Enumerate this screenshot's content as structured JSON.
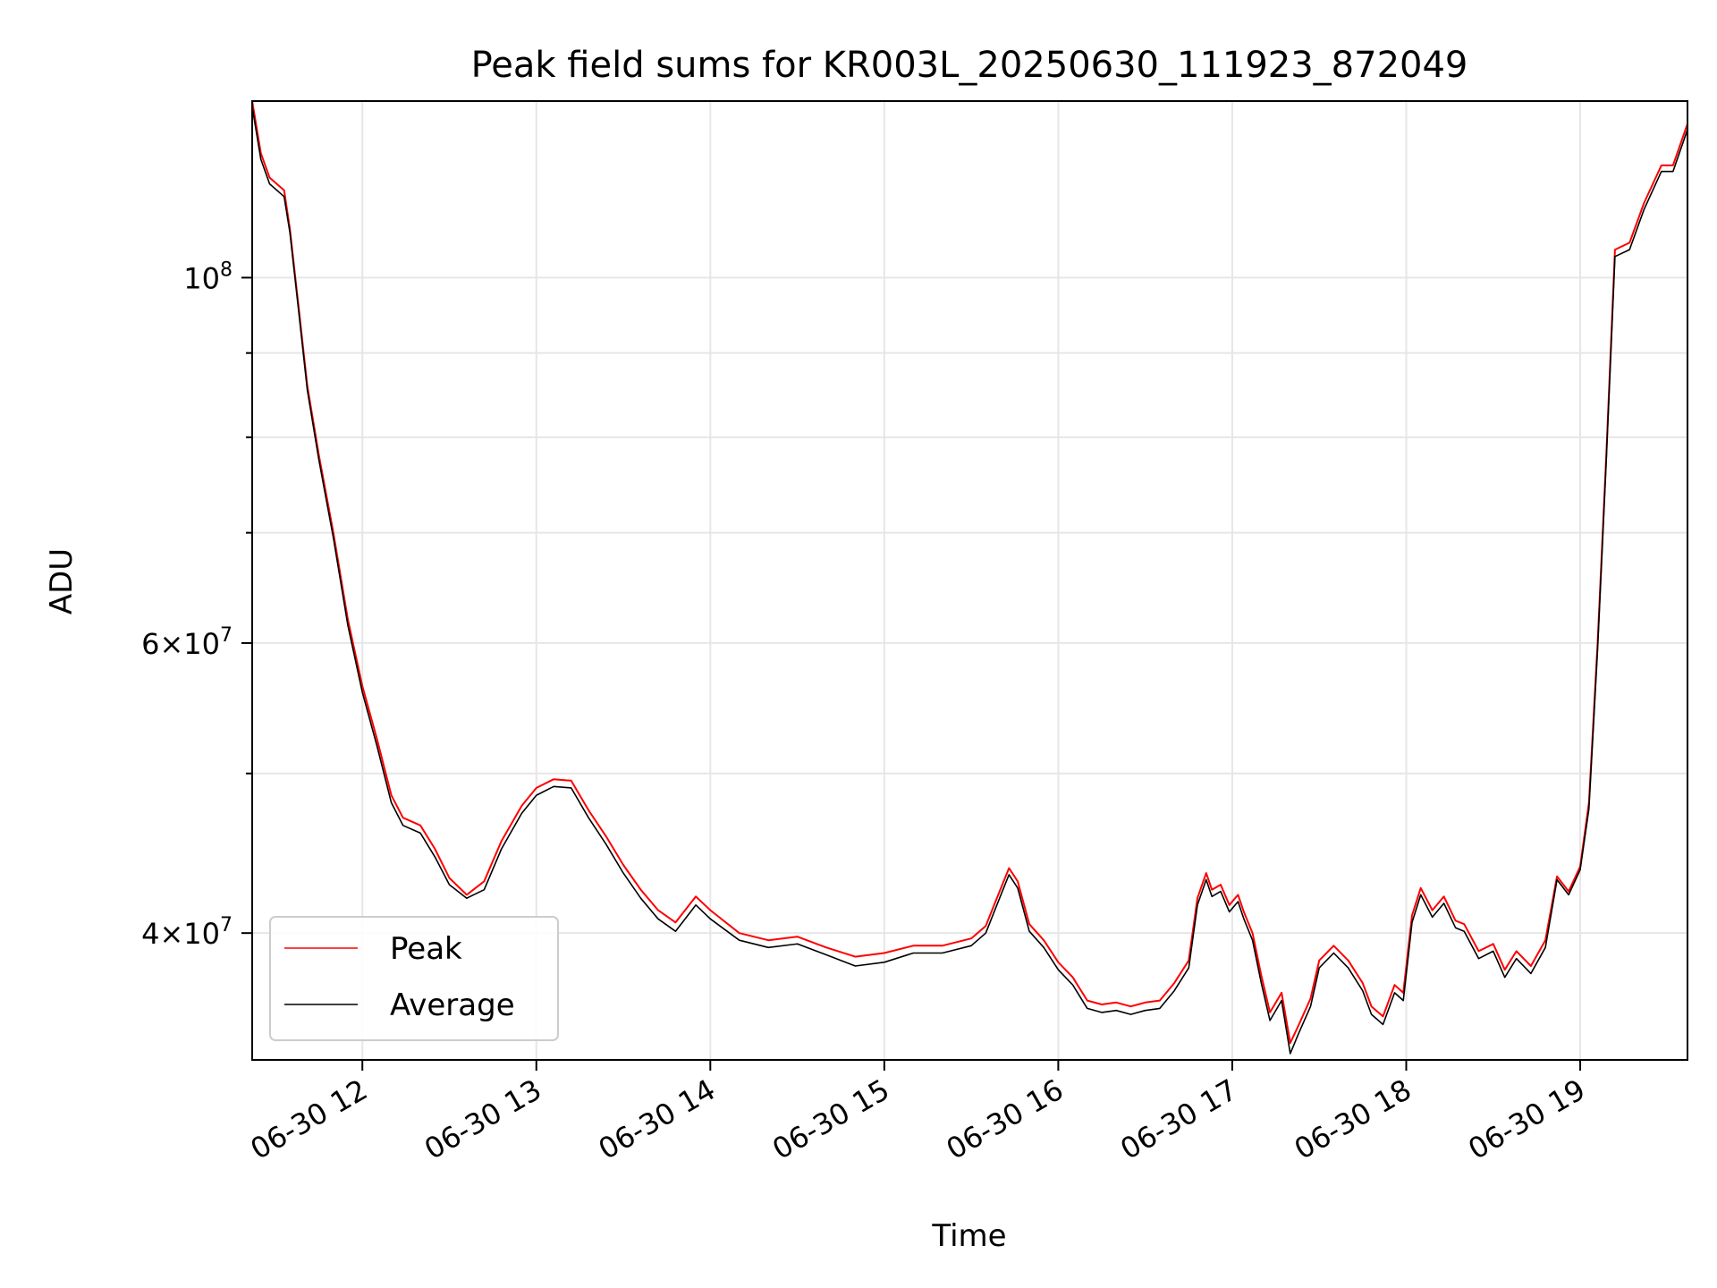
{
  "chart_data": {
    "type": "line",
    "title": "Peak field sums for KR003L_20250630_111923_872049",
    "xlabel": "Time",
    "ylabel": "ADU",
    "y_scale": "log",
    "ylim": [
      33500000,
      128000000
    ],
    "xlim": [
      "2025-06-30 11:22",
      "2025-06-30 19:37"
    ],
    "x_ticks": [
      {
        "t": "2025-06-30 12:00",
        "label": "06-30 12"
      },
      {
        "t": "2025-06-30 13:00",
        "label": "06-30 13"
      },
      {
        "t": "2025-06-30 14:00",
        "label": "06-30 14"
      },
      {
        "t": "2025-06-30 15:00",
        "label": "06-30 15"
      },
      {
        "t": "2025-06-30 16:00",
        "label": "06-30 16"
      },
      {
        "t": "2025-06-30 17:00",
        "label": "06-30 17"
      },
      {
        "t": "2025-06-30 18:00",
        "label": "06-30 18"
      },
      {
        "t": "2025-06-30 19:00",
        "label": "06-30 19"
      }
    ],
    "y_ticks": [
      {
        "v": 40000000,
        "mant": "4",
        "exp": "7"
      },
      {
        "v": 60000000,
        "mant": "6",
        "exp": "7"
      },
      {
        "v": 100000000,
        "mant": "",
        "exp": "8"
      }
    ],
    "y_minor_ticks": [
      50000000,
      70000000,
      80000000,
      90000000
    ],
    "grid": true,
    "legend_position": "lower-left",
    "series": [
      {
        "name": "Peak",
        "color": "#ff0000",
        "points": [
          [
            "2025-06-30 11:22",
            128000000
          ],
          [
            "2025-06-30 11:25",
            119000000
          ],
          [
            "2025-06-30 11:28",
            115000000
          ],
          [
            "2025-06-30 11:33",
            113000000
          ],
          [
            "2025-06-30 11:35",
            107000000
          ],
          [
            "2025-06-30 11:38",
            96000000
          ],
          [
            "2025-06-30 11:41",
            86000000
          ],
          [
            "2025-06-30 11:45",
            78000000
          ],
          [
            "2025-06-30 11:50",
            70000000
          ],
          [
            "2025-06-30 11:55",
            62000000
          ],
          [
            "2025-06-30 12:00",
            56500000
          ],
          [
            "2025-06-30 12:05",
            52500000
          ],
          [
            "2025-06-30 12:10",
            48500000
          ],
          [
            "2025-06-30 12:14",
            47000000
          ],
          [
            "2025-06-30 12:20",
            46500000
          ],
          [
            "2025-06-30 12:25",
            45000000
          ],
          [
            "2025-06-30 12:30",
            43200000
          ],
          [
            "2025-06-30 12:36",
            42200000
          ],
          [
            "2025-06-30 12:42",
            43000000
          ],
          [
            "2025-06-30 12:48",
            45500000
          ],
          [
            "2025-06-30 12:55",
            47800000
          ],
          [
            "2025-06-30 13:00",
            49000000
          ],
          [
            "2025-06-30 13:06",
            49600000
          ],
          [
            "2025-06-30 13:12",
            49500000
          ],
          [
            "2025-06-30 13:18",
            47500000
          ],
          [
            "2025-06-30 13:24",
            45800000
          ],
          [
            "2025-06-30 13:30",
            44000000
          ],
          [
            "2025-06-30 13:36",
            42500000
          ],
          [
            "2025-06-30 13:42",
            41300000
          ],
          [
            "2025-06-30 13:48",
            40600000
          ],
          [
            "2025-06-30 13:55",
            42100000
          ],
          [
            "2025-06-30 14:00",
            41300000
          ],
          [
            "2025-06-30 14:10",
            40000000
          ],
          [
            "2025-06-30 14:20",
            39600000
          ],
          [
            "2025-06-30 14:30",
            39800000
          ],
          [
            "2025-06-30 14:40",
            39200000
          ],
          [
            "2025-06-30 14:50",
            38700000
          ],
          [
            "2025-06-30 15:00",
            38900000
          ],
          [
            "2025-06-30 15:10",
            39300000
          ],
          [
            "2025-06-30 15:20",
            39300000
          ],
          [
            "2025-06-30 15:30",
            39700000
          ],
          [
            "2025-06-30 15:35",
            40400000
          ],
          [
            "2025-06-30 15:40",
            42500000
          ],
          [
            "2025-06-30 15:43",
            43800000
          ],
          [
            "2025-06-30 15:46",
            43000000
          ],
          [
            "2025-06-30 15:50",
            40500000
          ],
          [
            "2025-06-30 15:55",
            39600000
          ],
          [
            "2025-06-30 16:00",
            38400000
          ],
          [
            "2025-06-30 16:05",
            37600000
          ],
          [
            "2025-06-30 16:10",
            36400000
          ],
          [
            "2025-06-30 16:15",
            36200000
          ],
          [
            "2025-06-30 16:20",
            36300000
          ],
          [
            "2025-06-30 16:25",
            36100000
          ],
          [
            "2025-06-30 16:30",
            36300000
          ],
          [
            "2025-06-30 16:35",
            36400000
          ],
          [
            "2025-06-30 16:40",
            37300000
          ],
          [
            "2025-06-30 16:45",
            38500000
          ],
          [
            "2025-06-30 16:48",
            42000000
          ],
          [
            "2025-06-30 16:51",
            43500000
          ],
          [
            "2025-06-30 16:53",
            42500000
          ],
          [
            "2025-06-30 16:56",
            42800000
          ],
          [
            "2025-06-30 16:59",
            41600000
          ],
          [
            "2025-06-30 17:02",
            42200000
          ],
          [
            "2025-06-30 17:04",
            41200000
          ],
          [
            "2025-06-30 17:07",
            40000000
          ],
          [
            "2025-06-30 17:10",
            37700000
          ],
          [
            "2025-06-30 17:13",
            35800000
          ],
          [
            "2025-06-30 17:17",
            36800000
          ],
          [
            "2025-06-30 17:20",
            34300000
          ],
          [
            "2025-06-30 17:23",
            35200000
          ],
          [
            "2025-06-30 17:27",
            36500000
          ],
          [
            "2025-06-30 17:30",
            38500000
          ],
          [
            "2025-06-30 17:35",
            39300000
          ],
          [
            "2025-06-30 17:40",
            38500000
          ],
          [
            "2025-06-30 17:45",
            37300000
          ],
          [
            "2025-06-30 17:48",
            36100000
          ],
          [
            "2025-06-30 17:52",
            35600000
          ],
          [
            "2025-06-30 17:56",
            37200000
          ],
          [
            "2025-06-30 17:59",
            36800000
          ],
          [
            "2025-06-30 18:02",
            41000000
          ],
          [
            "2025-06-30 18:05",
            42600000
          ],
          [
            "2025-06-30 18:09",
            41300000
          ],
          [
            "2025-06-30 18:13",
            42100000
          ],
          [
            "2025-06-30 18:17",
            40700000
          ],
          [
            "2025-06-30 18:20",
            40500000
          ],
          [
            "2025-06-30 18:25",
            39000000
          ],
          [
            "2025-06-30 18:30",
            39400000
          ],
          [
            "2025-06-30 18:34",
            38000000
          ],
          [
            "2025-06-30 18:38",
            39000000
          ],
          [
            "2025-06-30 18:43",
            38200000
          ],
          [
            "2025-06-30 18:48",
            39600000
          ],
          [
            "2025-06-30 18:52",
            43300000
          ],
          [
            "2025-06-30 18:56",
            42400000
          ],
          [
            "2025-06-30 19:00",
            43900000
          ],
          [
            "2025-06-30 19:03",
            48000000
          ],
          [
            "2025-06-30 19:06",
            60000000
          ],
          [
            "2025-06-30 19:09",
            78000000
          ],
          [
            "2025-06-30 19:12",
            104000000
          ],
          [
            "2025-06-30 19:17",
            105000000
          ],
          [
            "2025-06-30 19:22",
            111000000
          ],
          [
            "2025-06-30 19:28",
            117000000
          ],
          [
            "2025-06-30 19:32",
            117000000
          ],
          [
            "2025-06-30 19:37",
            124000000
          ]
        ]
      },
      {
        "name": "Average",
        "color": "#000000",
        "points": [
          [
            "2025-06-30 11:22",
            127000000
          ],
          [
            "2025-06-30 11:25",
            118000000
          ],
          [
            "2025-06-30 11:28",
            114000000
          ],
          [
            "2025-06-30 11:33",
            112000000
          ],
          [
            "2025-06-30 11:35",
            106500000
          ],
          [
            "2025-06-30 11:38",
            95500000
          ],
          [
            "2025-06-30 11:41",
            85500000
          ],
          [
            "2025-06-30 11:45",
            77500000
          ],
          [
            "2025-06-30 11:50",
            69500000
          ],
          [
            "2025-06-30 11:55",
            61500000
          ],
          [
            "2025-06-30 12:00",
            56000000
          ],
          [
            "2025-06-30 12:05",
            52000000
          ],
          [
            "2025-06-30 12:10",
            48000000
          ],
          [
            "2025-06-30 12:14",
            46500000
          ],
          [
            "2025-06-30 12:20",
            46000000
          ],
          [
            "2025-06-30 12:25",
            44500000
          ],
          [
            "2025-06-30 12:30",
            42800000
          ],
          [
            "2025-06-30 12:36",
            42000000
          ],
          [
            "2025-06-30 12:42",
            42500000
          ],
          [
            "2025-06-30 12:48",
            45000000
          ],
          [
            "2025-06-30 12:55",
            47300000
          ],
          [
            "2025-06-30 13:00",
            48500000
          ],
          [
            "2025-06-30 13:06",
            49100000
          ],
          [
            "2025-06-30 13:12",
            49000000
          ],
          [
            "2025-06-30 13:18",
            47000000
          ],
          [
            "2025-06-30 13:24",
            45300000
          ],
          [
            "2025-06-30 13:30",
            43500000
          ],
          [
            "2025-06-30 13:36",
            42000000
          ],
          [
            "2025-06-30 13:42",
            40800000
          ],
          [
            "2025-06-30 13:48",
            40100000
          ],
          [
            "2025-06-30 13:55",
            41600000
          ],
          [
            "2025-06-30 14:00",
            40800000
          ],
          [
            "2025-06-30 14:10",
            39600000
          ],
          [
            "2025-06-30 14:20",
            39200000
          ],
          [
            "2025-06-30 14:30",
            39400000
          ],
          [
            "2025-06-30 14:40",
            38800000
          ],
          [
            "2025-06-30 14:50",
            38200000
          ],
          [
            "2025-06-30 15:00",
            38400000
          ],
          [
            "2025-06-30 15:10",
            38900000
          ],
          [
            "2025-06-30 15:20",
            38900000
          ],
          [
            "2025-06-30 15:30",
            39300000
          ],
          [
            "2025-06-30 15:35",
            40000000
          ],
          [
            "2025-06-30 15:40",
            42100000
          ],
          [
            "2025-06-30 15:43",
            43400000
          ],
          [
            "2025-06-30 15:46",
            42600000
          ],
          [
            "2025-06-30 15:50",
            40100000
          ],
          [
            "2025-06-30 15:55",
            39200000
          ],
          [
            "2025-06-30 16:00",
            38000000
          ],
          [
            "2025-06-30 16:05",
            37200000
          ],
          [
            "2025-06-30 16:10",
            36000000
          ],
          [
            "2025-06-30 16:15",
            35800000
          ],
          [
            "2025-06-30 16:20",
            35900000
          ],
          [
            "2025-06-30 16:25",
            35700000
          ],
          [
            "2025-06-30 16:30",
            35900000
          ],
          [
            "2025-06-30 16:35",
            36000000
          ],
          [
            "2025-06-30 16:40",
            36900000
          ],
          [
            "2025-06-30 16:45",
            38100000
          ],
          [
            "2025-06-30 16:48",
            41600000
          ],
          [
            "2025-06-30 16:51",
            43100000
          ],
          [
            "2025-06-30 16:53",
            42100000
          ],
          [
            "2025-06-30 16:56",
            42400000
          ],
          [
            "2025-06-30 16:59",
            41200000
          ],
          [
            "2025-06-30 17:02",
            41800000
          ],
          [
            "2025-06-30 17:04",
            40800000
          ],
          [
            "2025-06-30 17:07",
            39600000
          ],
          [
            "2025-06-30 17:10",
            37300000
          ],
          [
            "2025-06-30 17:13",
            35400000
          ],
          [
            "2025-06-30 17:17",
            36400000
          ],
          [
            "2025-06-30 17:20",
            33800000
          ],
          [
            "2025-06-30 17:23",
            34800000
          ],
          [
            "2025-06-30 17:27",
            36100000
          ],
          [
            "2025-06-30 17:30",
            38100000
          ],
          [
            "2025-06-30 17:35",
            38900000
          ],
          [
            "2025-06-30 17:40",
            38100000
          ],
          [
            "2025-06-30 17:45",
            36900000
          ],
          [
            "2025-06-30 17:48",
            35700000
          ],
          [
            "2025-06-30 17:52",
            35200000
          ],
          [
            "2025-06-30 17:56",
            36800000
          ],
          [
            "2025-06-30 17:59",
            36400000
          ],
          [
            "2025-06-30 18:02",
            40600000
          ],
          [
            "2025-06-30 18:05",
            42200000
          ],
          [
            "2025-06-30 18:09",
            40900000
          ],
          [
            "2025-06-30 18:13",
            41700000
          ],
          [
            "2025-06-30 18:17",
            40300000
          ],
          [
            "2025-06-30 18:20",
            40100000
          ],
          [
            "2025-06-30 18:25",
            38600000
          ],
          [
            "2025-06-30 18:30",
            39000000
          ],
          [
            "2025-06-30 18:34",
            37600000
          ],
          [
            "2025-06-30 18:38",
            38600000
          ],
          [
            "2025-06-30 18:43",
            37800000
          ],
          [
            "2025-06-30 18:48",
            39200000
          ],
          [
            "2025-06-30 18:52",
            43100000
          ],
          [
            "2025-06-30 18:56",
            42200000
          ],
          [
            "2025-06-30 19:00",
            43700000
          ],
          [
            "2025-06-30 19:03",
            47600000
          ],
          [
            "2025-06-30 19:06",
            59500000
          ],
          [
            "2025-06-30 19:09",
            77500000
          ],
          [
            "2025-06-30 19:12",
            103000000
          ],
          [
            "2025-06-30 19:17",
            104000000
          ],
          [
            "2025-06-30 19:22",
            110000000
          ],
          [
            "2025-06-30 19:28",
            116000000
          ],
          [
            "2025-06-30 19:32",
            116000000
          ],
          [
            "2025-06-30 19:37",
            123000000
          ]
        ]
      }
    ]
  }
}
